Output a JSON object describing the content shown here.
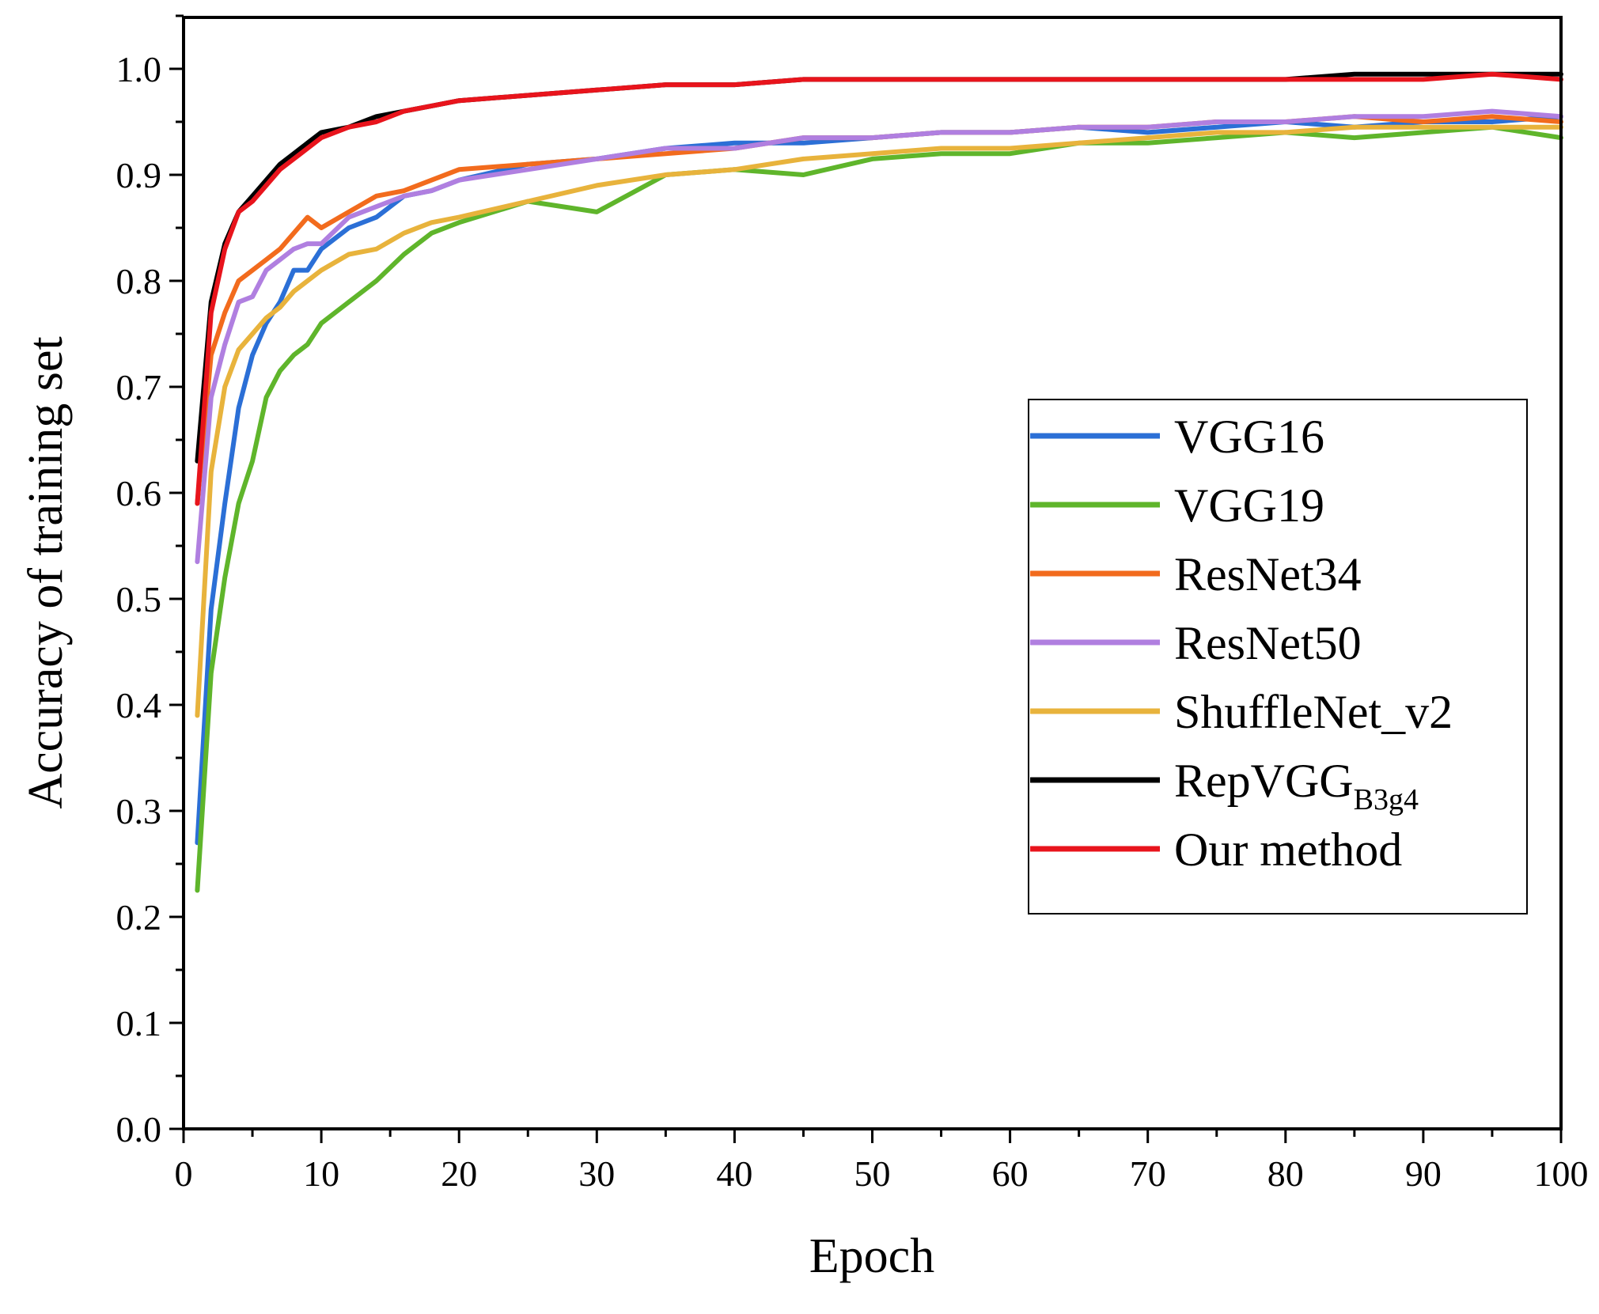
{
  "chart_data": {
    "type": "line",
    "title": "",
    "xlabel": "Epoch",
    "ylabel": "Accuracy of training set",
    "xlim": [
      0,
      100
    ],
    "ylim": [
      0.0,
      1.05
    ],
    "xticks": [
      "0",
      "10",
      "20",
      "30",
      "40",
      "50",
      "60",
      "70",
      "80",
      "90",
      "100"
    ],
    "yticks": [
      "0.0",
      "0.1",
      "0.2",
      "0.3",
      "0.4",
      "0.5",
      "0.6",
      "0.7",
      "0.8",
      "0.9",
      "1.0"
    ],
    "legend_position": "center-right",
    "x": [
      1,
      2,
      3,
      4,
      5,
      6,
      7,
      8,
      9,
      10,
      12,
      14,
      16,
      18,
      20,
      25,
      30,
      35,
      40,
      45,
      50,
      55,
      60,
      65,
      70,
      75,
      80,
      85,
      90,
      95,
      100
    ],
    "series": [
      {
        "name": "VGG16",
        "color": "#2b6fd6",
        "values": [
          0.27,
          0.49,
          0.59,
          0.68,
          0.73,
          0.76,
          0.78,
          0.81,
          0.81,
          0.83,
          0.85,
          0.86,
          0.88,
          0.885,
          0.895,
          0.91,
          0.915,
          0.925,
          0.93,
          0.93,
          0.935,
          0.94,
          0.94,
          0.945,
          0.94,
          0.945,
          0.95,
          0.945,
          0.95,
          0.95,
          0.955
        ]
      },
      {
        "name": "VGG19",
        "color": "#5fb52b",
        "values": [
          0.225,
          0.43,
          0.52,
          0.59,
          0.63,
          0.69,
          0.715,
          0.73,
          0.74,
          0.76,
          0.78,
          0.8,
          0.825,
          0.845,
          0.855,
          0.875,
          0.865,
          0.9,
          0.905,
          0.9,
          0.915,
          0.92,
          0.92,
          0.93,
          0.93,
          0.935,
          0.94,
          0.935,
          0.94,
          0.945,
          0.935
        ]
      },
      {
        "name": "ResNet34",
        "color": "#f26b1d",
        "values": [
          0.59,
          0.73,
          0.77,
          0.8,
          0.81,
          0.82,
          0.83,
          0.845,
          0.86,
          0.85,
          0.865,
          0.88,
          0.885,
          0.895,
          0.905,
          0.91,
          0.915,
          0.92,
          0.925,
          0.935,
          0.935,
          0.94,
          0.94,
          0.945,
          0.945,
          0.95,
          0.95,
          0.955,
          0.95,
          0.955,
          0.95
        ]
      },
      {
        "name": "ResNet50",
        "color": "#b07fe0",
        "values": [
          0.535,
          0.69,
          0.74,
          0.78,
          0.785,
          0.81,
          0.82,
          0.83,
          0.835,
          0.835,
          0.86,
          0.87,
          0.88,
          0.885,
          0.895,
          0.905,
          0.915,
          0.925,
          0.925,
          0.935,
          0.935,
          0.94,
          0.94,
          0.945,
          0.945,
          0.95,
          0.95,
          0.955,
          0.955,
          0.96,
          0.955
        ]
      },
      {
        "name": "ShuffleNet_v2",
        "color": "#e8b33c",
        "values": [
          0.39,
          0.62,
          0.7,
          0.735,
          0.75,
          0.765,
          0.775,
          0.79,
          0.8,
          0.81,
          0.825,
          0.83,
          0.845,
          0.855,
          0.86,
          0.875,
          0.89,
          0.9,
          0.905,
          0.915,
          0.92,
          0.925,
          0.925,
          0.93,
          0.935,
          0.94,
          0.94,
          0.945,
          0.945,
          0.945,
          0.945
        ]
      },
      {
        "name": "RepVGG",
        "name_sub": "B3g4",
        "color": "#000000",
        "values": [
          0.63,
          0.78,
          0.835,
          0.865,
          0.88,
          0.895,
          0.91,
          0.92,
          0.93,
          0.94,
          0.945,
          0.955,
          0.96,
          0.965,
          0.97,
          0.975,
          0.98,
          0.985,
          0.985,
          0.99,
          0.99,
          0.99,
          0.99,
          0.99,
          0.99,
          0.99,
          0.99,
          0.995,
          0.995,
          0.995,
          0.995
        ]
      },
      {
        "name": "Our method",
        "color": "#e8141c",
        "values": [
          0.59,
          0.77,
          0.83,
          0.865,
          0.875,
          0.89,
          0.905,
          0.915,
          0.925,
          0.935,
          0.945,
          0.95,
          0.96,
          0.965,
          0.97,
          0.975,
          0.98,
          0.985,
          0.985,
          0.99,
          0.99,
          0.99,
          0.99,
          0.99,
          0.99,
          0.99,
          0.99,
          0.99,
          0.99,
          0.995,
          0.99
        ]
      }
    ]
  }
}
